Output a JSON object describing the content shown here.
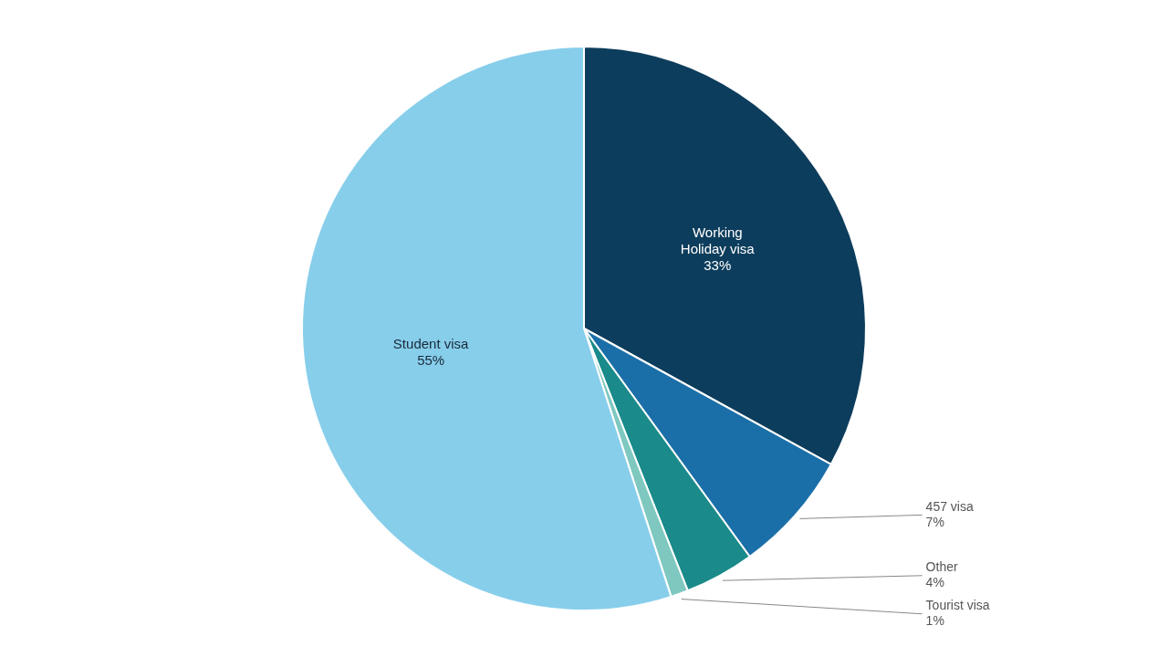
{
  "chart_data": {
    "type": "pie",
    "categories": [
      "Working\nHoliday visa",
      "457 visa",
      "Other",
      "Tourist visa",
      "Student visa"
    ],
    "values": [
      33,
      7,
      4,
      1,
      55
    ],
    "value_labels": [
      "33%",
      "7%",
      "4%",
      "1%",
      "55%"
    ],
    "data_labels": true,
    "colors": [
      "#0d3d5c",
      "#1b6fa8",
      "#1a8a8a",
      "#7ec8c0",
      "#87ceeb"
    ]
  }
}
